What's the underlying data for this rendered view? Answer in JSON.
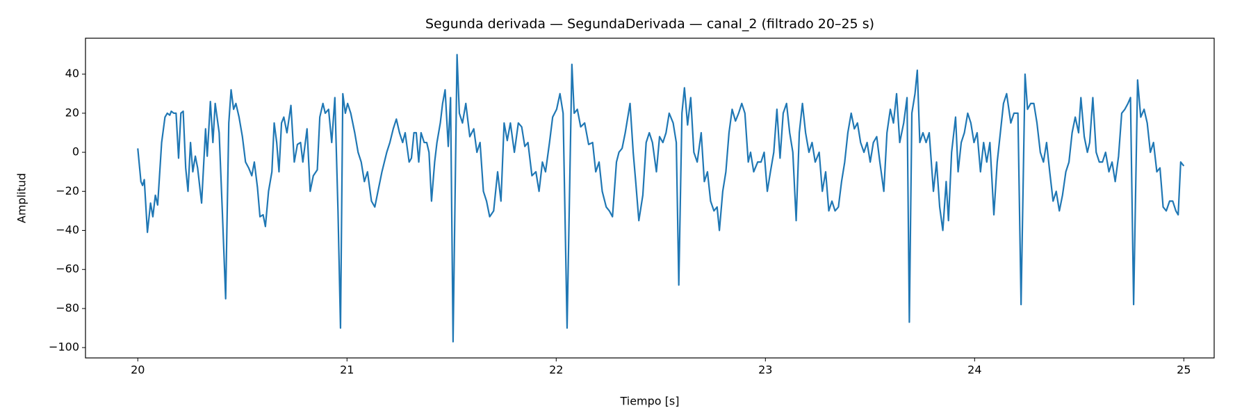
{
  "chart_data": {
    "type": "line",
    "title": "Segunda derivada — SegundaDerivada — canal_2 (filtrado 20–25 s)",
    "x_label": "Tiempo [s]",
    "y_label": "Amplitud",
    "color": "#1f77b4",
    "grid": false,
    "xlim": [
      19.75,
      25.145
    ],
    "ylim": [
      -105.3,
      58.4
    ],
    "xticks": [
      20,
      21,
      22,
      23,
      24,
      25
    ],
    "yticks": [
      {
        "value": -100,
        "label": "−100"
      },
      {
        "value": -80,
        "label": "−80"
      },
      {
        "value": -60,
        "label": "−60"
      },
      {
        "value": -40,
        "label": "−40"
      },
      {
        "value": -20,
        "label": "−20"
      },
      0,
      20,
      40
    ],
    "x": [
      20.0,
      20.015,
      20.023,
      20.031,
      20.046,
      20.061,
      20.072,
      20.084,
      20.095,
      20.114,
      20.13,
      20.141,
      20.153,
      20.16,
      20.172,
      20.183,
      20.195,
      20.206,
      20.217,
      20.229,
      20.24,
      20.252,
      20.263,
      20.275,
      20.286,
      20.305,
      20.324,
      20.332,
      20.347,
      20.359,
      20.37,
      20.389,
      20.404,
      20.42,
      20.435,
      20.446,
      20.458,
      20.469,
      20.484,
      20.5,
      20.515,
      20.53,
      20.545,
      20.557,
      20.572,
      20.584,
      20.599,
      20.61,
      20.625,
      20.641,
      20.652,
      20.664,
      20.675,
      20.687,
      20.698,
      20.713,
      20.732,
      20.748,
      20.763,
      20.778,
      20.789,
      20.809,
      20.824,
      20.839,
      20.858,
      20.87,
      20.885,
      20.896,
      20.912,
      20.927,
      20.942,
      20.957,
      20.969,
      20.98,
      20.992,
      21.003,
      21.018,
      21.037,
      21.053,
      21.068,
      21.083,
      21.098,
      21.117,
      21.133,
      21.148,
      21.167,
      21.19,
      21.205,
      21.221,
      21.236,
      21.251,
      21.266,
      21.278,
      21.297,
      21.308,
      21.32,
      21.331,
      21.343,
      21.354,
      21.369,
      21.381,
      21.392,
      21.404,
      21.419,
      21.43,
      21.446,
      21.457,
      21.469,
      21.484,
      21.495,
      21.507,
      21.526,
      21.537,
      21.552,
      21.568,
      21.587,
      21.606,
      21.621,
      21.636,
      21.652,
      21.667,
      21.682,
      21.701,
      21.72,
      21.736,
      21.751,
      21.766,
      21.781,
      21.8,
      21.819,
      21.835,
      21.85,
      21.865,
      21.884,
      21.903,
      21.918,
      21.934,
      21.949,
      21.968,
      21.983,
      22.002,
      22.018,
      22.033,
      22.052,
      22.075,
      22.086,
      22.101,
      22.117,
      22.136,
      22.155,
      22.174,
      22.189,
      22.205,
      22.22,
      22.239,
      22.254,
      22.269,
      22.288,
      22.3,
      22.315,
      22.33,
      22.353,
      22.368,
      22.38,
      22.395,
      22.414,
      22.43,
      22.445,
      22.46,
      22.479,
      22.494,
      22.51,
      22.525,
      22.54,
      22.559,
      22.574,
      22.586,
      22.601,
      22.613,
      22.628,
      22.643,
      22.658,
      22.674,
      22.693,
      22.708,
      22.723,
      22.738,
      22.754,
      22.769,
      22.78,
      22.796,
      22.811,
      22.826,
      22.841,
      22.857,
      22.872,
      22.887,
      22.902,
      22.918,
      22.929,
      22.944,
      22.963,
      22.979,
      22.994,
      23.009,
      23.024,
      23.04,
      23.055,
      23.07,
      23.085,
      23.101,
      23.116,
      23.131,
      23.147,
      23.162,
      23.177,
      23.192,
      23.208,
      23.223,
      23.238,
      23.257,
      23.272,
      23.288,
      23.303,
      23.318,
      23.333,
      23.349,
      23.364,
      23.379,
      23.394,
      23.41,
      23.425,
      23.44,
      23.455,
      23.471,
      23.486,
      23.501,
      23.516,
      23.532,
      23.547,
      23.566,
      23.581,
      23.597,
      23.612,
      23.627,
      23.642,
      23.661,
      23.677,
      23.688,
      23.7,
      23.715,
      23.726,
      23.738,
      23.753,
      23.768,
      23.783,
      23.803,
      23.818,
      23.833,
      23.848,
      23.864,
      23.875,
      23.89,
      23.909,
      23.921,
      23.936,
      23.951,
      23.967,
      23.982,
      23.997,
      24.012,
      24.028,
      24.043,
      24.058,
      24.073,
      24.092,
      24.108,
      24.123,
      24.138,
      24.153,
      24.173,
      24.188,
      24.207,
      24.222,
      24.241,
      24.253,
      24.268,
      24.283,
      24.298,
      24.314,
      24.329,
      24.344,
      24.359,
      24.375,
      24.39,
      24.405,
      24.42,
      24.436,
      24.451,
      24.466,
      24.481,
      24.497,
      24.508,
      24.524,
      24.539,
      24.55,
      24.565,
      24.581,
      24.596,
      24.611,
      24.626,
      24.642,
      24.657,
      24.672,
      24.688,
      24.703,
      24.718,
      24.733,
      24.745,
      24.76,
      24.779,
      24.794,
      24.81,
      24.825,
      24.84,
      24.855,
      24.871,
      24.886,
      24.901,
      24.916,
      24.932,
      24.947,
      24.962,
      24.973,
      24.985,
      25.0
    ],
    "values": [
      2,
      -15,
      -17,
      -14,
      -41,
      -26,
      -33,
      -22,
      -27,
      5,
      18,
      20,
      19,
      21,
      20,
      20,
      -3,
      20,
      21,
      -8,
      -20,
      5,
      -10,
      -2,
      -8,
      -26,
      12,
      -2,
      26,
      5,
      25,
      10,
      -30,
      -75,
      15,
      32,
      22,
      25,
      18,
      8,
      -5,
      -8,
      -12,
      -5,
      -18,
      -33,
      -32,
      -38,
      -20,
      -10,
      15,
      5,
      -10,
      15,
      18,
      10,
      24,
      -5,
      4,
      5,
      -5,
      12,
      -20,
      -12,
      -9,
      18,
      25,
      20,
      22,
      5,
      28,
      -30,
      -90,
      30,
      20,
      25,
      20,
      10,
      0,
      -5,
      -15,
      -10,
      -25,
      -28,
      -20,
      -10,
      0,
      5,
      12,
      17,
      10,
      5,
      10,
      -5,
      -3,
      10,
      10,
      -5,
      10,
      5,
      5,
      0,
      -25,
      -5,
      5,
      15,
      25,
      32,
      3,
      28,
      -97,
      50,
      20,
      15,
      25,
      8,
      12,
      0,
      5,
      -20,
      -25,
      -33,
      -30,
      -10,
      -25,
      15,
      6,
      15,
      0,
      15,
      13,
      3,
      5,
      -12,
      -10,
      -20,
      -5,
      -10,
      5,
      18,
      22,
      30,
      20,
      -90,
      45,
      20,
      22,
      13,
      15,
      4,
      5,
      -10,
      -5,
      -20,
      -28,
      -30,
      -33,
      -5,
      0,
      2,
      10,
      25,
      0,
      -15,
      -35,
      -22,
      5,
      10,
      5,
      -10,
      8,
      5,
      10,
      20,
      15,
      5,
      -68,
      20,
      33,
      14,
      28,
      0,
      -5,
      10,
      -15,
      -10,
      -25,
      -30,
      -28,
      -40,
      -20,
      -10,
      10,
      22,
      16,
      20,
      25,
      20,
      -5,
      0,
      -10,
      -5,
      -5,
      0,
      -20,
      -10,
      0,
      22,
      -3,
      20,
      25,
      10,
      0,
      -35,
      10,
      25,
      10,
      0,
      5,
      -5,
      0,
      -20,
      -10,
      -30,
      -25,
      -30,
      -28,
      -15,
      -5,
      10,
      20,
      12,
      15,
      5,
      0,
      5,
      -5,
      5,
      8,
      -5,
      -20,
      10,
      22,
      15,
      30,
      5,
      15,
      28,
      -87,
      20,
      30,
      42,
      5,
      10,
      5,
      10,
      -20,
      -5,
      -28,
      -40,
      -15,
      -35,
      0,
      18,
      -10,
      5,
      10,
      20,
      15,
      5,
      10,
      -10,
      5,
      -5,
      5,
      -32,
      -5,
      10,
      25,
      30,
      15,
      20,
      20,
      -78,
      40,
      22,
      25,
      25,
      15,
      0,
      -5,
      5,
      -10,
      -25,
      -20,
      -30,
      -22,
      -10,
      -5,
      10,
      18,
      10,
      28,
      8,
      0,
      5,
      28,
      0,
      -5,
      -5,
      0,
      -10,
      -5,
      -15,
      -2,
      20,
      22,
      25,
      28,
      -78,
      37,
      18,
      22,
      15,
      0,
      5,
      -10,
      -8,
      -28,
      -30,
      -25,
      -25,
      -30,
      -32,
      -5,
      -7
    ]
  }
}
